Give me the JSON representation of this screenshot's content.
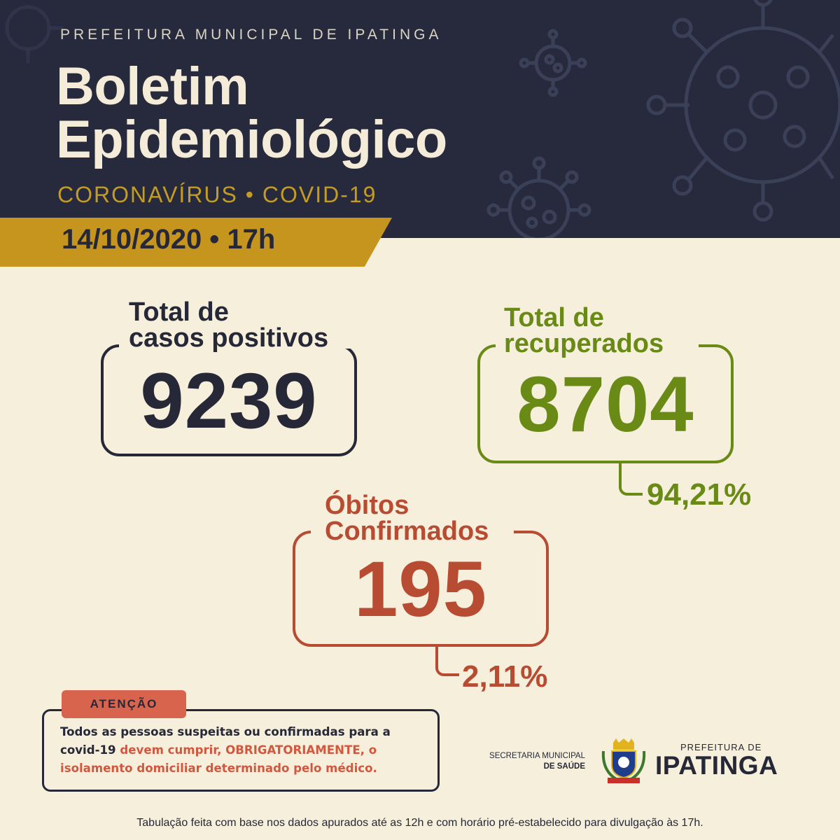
{
  "header": {
    "organization": "PREFEITURA MUNICIPAL DE IPATINGA",
    "title_line1": "Boletim",
    "title_line2": "Epidemiológico",
    "subtitle": "CORONAVÍRUS • COVID-19",
    "date": "14/10/2020 • 17h",
    "background_color": "#272a3c",
    "accent_color": "#c6951e"
  },
  "stats": {
    "positive": {
      "label_line1": "Total de",
      "label_line2": "casos positivos",
      "value": "9239",
      "color": "#262838"
    },
    "recovered": {
      "label_line1": "Total de",
      "label_line2": "recuperados",
      "value": "8704",
      "percent": "94,21%",
      "color": "#6a8a16"
    },
    "deaths": {
      "label_line1": "Óbitos",
      "label_line2": "Confirmados",
      "value": "195",
      "percent": "2,11%",
      "color": "#b74c33"
    }
  },
  "notice": {
    "tag": "ATENÇÃO",
    "text_before": "Todos as pessoas suspeitas ou confirmadas para a covid-19 ",
    "text_highlight": "devem cumprir, OBRIGATORIAMENTE, o isolamento domiciliar determinado pelo médico."
  },
  "branding": {
    "secretaria_line1": "SECRETARIA MUNICIPAL",
    "secretaria_line2": "DE SAÚDE",
    "prefeitura_top": "PREFEITURA DE",
    "prefeitura_main": "IPATINGA",
    "crest_icon": "municipal-crest-icon"
  },
  "footer": {
    "text": "Tabulação feita com base nos dados apurados até as 12h e com horário pré-estabelecido para divulgação às 17h."
  }
}
